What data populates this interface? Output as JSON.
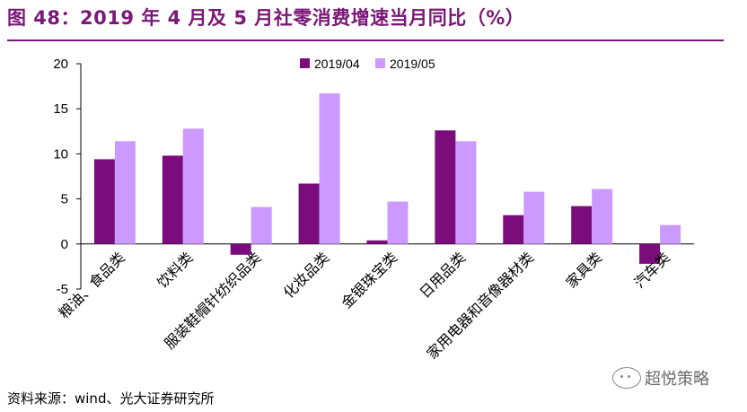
{
  "figure_title": "图 48：2019 年 4 月及 5 月社零消费增速当月同比（%）",
  "source_note": "资料来源：wind、光大证券研究所",
  "watermark": "超悦策略",
  "colors": {
    "series_1": "#7b0c7b",
    "series_2": "#cc99ff",
    "title": "#7b1877"
  },
  "chart_data": {
    "type": "bar",
    "title": "",
    "xlabel": "",
    "ylabel": "",
    "ylim": [
      -5,
      20
    ],
    "yticks": [
      -5,
      0,
      5,
      10,
      15,
      20
    ],
    "grid": false,
    "legend_position": "top-center",
    "categories": [
      "粮油、食品类",
      "饮料类",
      "服装鞋帽针纺织品类",
      "化妆品类",
      "金银珠宝类",
      "日用品类",
      "家用电器和音像器材类",
      "家具类",
      "汽车类"
    ],
    "series": [
      {
        "name": "2019/04",
        "color": "#7b0c7b",
        "values": [
          9.4,
          9.8,
          -1.2,
          6.7,
          0.4,
          12.6,
          3.2,
          4.2,
          -2.2
        ]
      },
      {
        "name": "2019/05",
        "color": "#cc99ff",
        "values": [
          11.4,
          12.8,
          4.1,
          16.7,
          4.7,
          11.4,
          5.8,
          6.1,
          2.1
        ]
      }
    ]
  }
}
